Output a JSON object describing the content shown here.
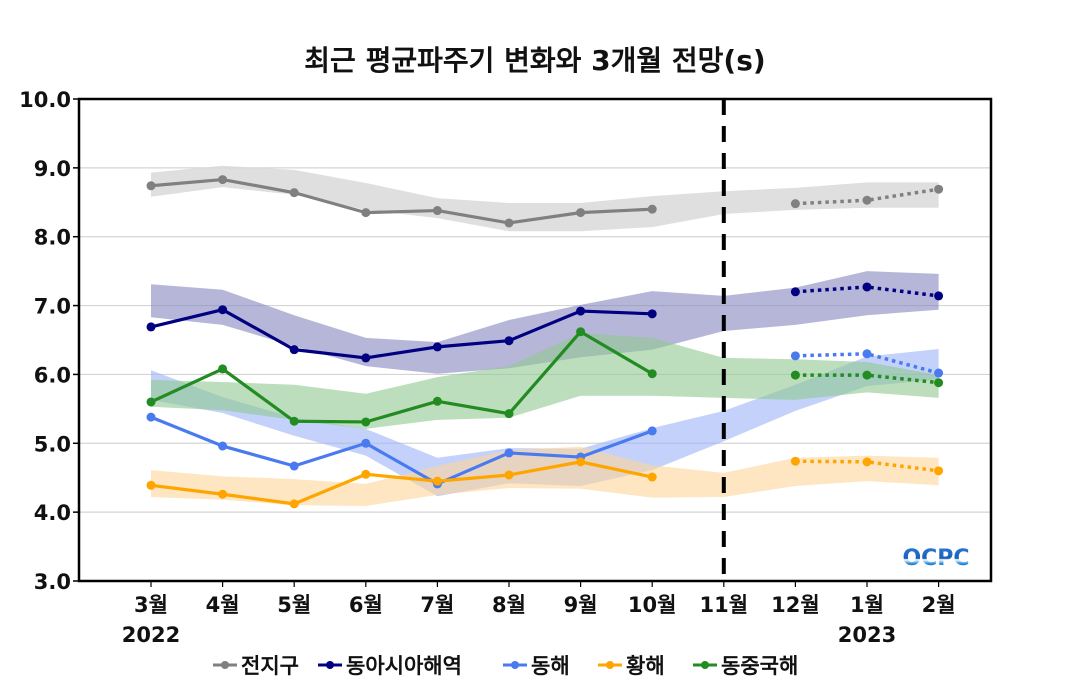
{
  "chart_data": {
    "type": "line",
    "title": "최근 평균파주기 변화와 3개월 전망(s)",
    "xlabel": "",
    "ylabel": "",
    "ylim": [
      3.0,
      10.0
    ],
    "yticks": [
      "3.0",
      "4.0",
      "5.0",
      "6.0",
      "7.0",
      "8.0",
      "9.0",
      "10.0"
    ],
    "grid": true,
    "categories": [
      "3월",
      "4월",
      "5월",
      "6월",
      "7월",
      "8월",
      "9월",
      "10월",
      "11월",
      "12월",
      "1월",
      "2월"
    ],
    "year_labels": [
      {
        "category": "3월",
        "label": "2022"
      },
      {
        "category": "1월",
        "label": "2023"
      }
    ],
    "forecast_divider_at": "11월",
    "legend_position": "bottom",
    "logo_text": "OCPC",
    "series": [
      {
        "name": "전지구",
        "color": "#808080",
        "band_color": "#d9d9d9",
        "observed": [
          8.74,
          8.83,
          8.64,
          8.35,
          8.38,
          8.2,
          8.35,
          8.4,
          null,
          null,
          null,
          null
        ],
        "forecast": [
          null,
          null,
          null,
          null,
          null,
          null,
          null,
          null,
          null,
          8.48,
          8.53,
          8.69
        ],
        "band_upper": [
          8.93,
          9.03,
          8.97,
          8.78,
          8.56,
          8.49,
          8.49,
          8.59,
          8.66,
          8.71,
          8.79,
          8.79
        ],
        "band_lower": [
          8.58,
          8.72,
          8.61,
          8.39,
          8.27,
          8.08,
          8.08,
          8.14,
          8.33,
          8.39,
          8.42,
          8.42
        ]
      },
      {
        "name": "동아시아해역",
        "color": "#000080",
        "band_color": "#8585c0",
        "observed": [
          6.69,
          6.94,
          6.36,
          6.24,
          6.4,
          6.49,
          6.92,
          6.88,
          null,
          null,
          null,
          null
        ],
        "forecast": [
          null,
          null,
          null,
          null,
          null,
          null,
          null,
          null,
          null,
          7.2,
          7.27,
          7.14
        ],
        "band_upper": [
          7.31,
          7.23,
          6.86,
          6.53,
          6.47,
          6.79,
          7.01,
          7.21,
          7.14,
          7.26,
          7.5,
          7.46
        ],
        "band_lower": [
          6.83,
          6.72,
          6.41,
          6.12,
          6.01,
          6.09,
          6.25,
          6.36,
          6.63,
          6.72,
          6.86,
          6.94
        ]
      },
      {
        "name": "동해",
        "color": "#4a7af0",
        "band_color": "#9db4f8",
        "observed": [
          5.38,
          4.96,
          4.67,
          5.0,
          4.41,
          4.86,
          4.8,
          5.18,
          null,
          null,
          null,
          null
        ],
        "forecast": [
          null,
          null,
          null,
          null,
          null,
          null,
          null,
          null,
          null,
          6.27,
          6.3,
          6.02
        ],
        "band_upper": [
          6.06,
          5.67,
          5.37,
          5.21,
          4.79,
          4.93,
          4.92,
          5.22,
          5.47,
          5.85,
          6.26,
          6.37
        ],
        "band_lower": [
          5.63,
          5.44,
          5.11,
          4.82,
          4.23,
          4.42,
          4.38,
          4.61,
          5.03,
          5.47,
          5.83,
          5.93
        ]
      },
      {
        "name": "황해",
        "color": "#ffa500",
        "band_color": "#fdd59a",
        "observed": [
          4.39,
          4.26,
          4.12,
          4.55,
          4.45,
          4.54,
          4.73,
          4.51,
          null,
          null,
          null,
          null
        ],
        "forecast": [
          null,
          null,
          null,
          null,
          null,
          null,
          null,
          null,
          null,
          4.74,
          4.73,
          4.6
        ],
        "band_upper": [
          4.61,
          4.52,
          4.48,
          4.41,
          4.67,
          4.9,
          4.95,
          4.68,
          4.57,
          4.79,
          4.82,
          4.79
        ],
        "band_lower": [
          4.22,
          4.18,
          4.1,
          4.09,
          4.25,
          4.35,
          4.34,
          4.21,
          4.22,
          4.38,
          4.45,
          4.39
        ]
      },
      {
        "name": "동중국해",
        "color": "#228b22",
        "band_color": "#90c890",
        "observed": [
          5.6,
          6.08,
          5.32,
          5.31,
          5.61,
          5.43,
          6.62,
          6.01,
          null,
          null,
          null,
          null
        ],
        "forecast": [
          null,
          null,
          null,
          null,
          null,
          null,
          null,
          null,
          null,
          5.99,
          5.99,
          5.88
        ],
        "band_upper": [
          5.92,
          5.89,
          5.85,
          5.72,
          5.96,
          6.12,
          6.6,
          6.53,
          6.24,
          6.22,
          6.18,
          5.99
        ],
        "band_lower": [
          5.53,
          5.48,
          5.34,
          5.21,
          5.34,
          5.37,
          5.69,
          5.69,
          5.66,
          5.63,
          5.74,
          5.66
        ]
      }
    ]
  }
}
